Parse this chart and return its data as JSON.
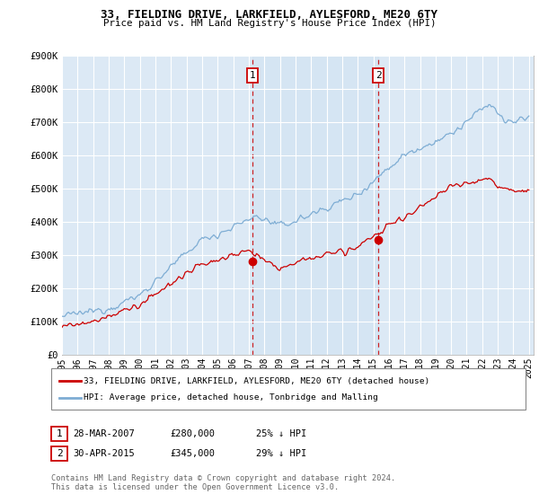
{
  "title": "33, FIELDING DRIVE, LARKFIELD, AYLESFORD, ME20 6TY",
  "subtitle": "Price paid vs. HM Land Registry's House Price Index (HPI)",
  "ylim": [
    0,
    900000
  ],
  "yticks": [
    0,
    100000,
    200000,
    300000,
    400000,
    500000,
    600000,
    700000,
    800000,
    900000
  ],
  "ytick_labels": [
    "£0",
    "£100K",
    "£200K",
    "£300K",
    "£400K",
    "£500K",
    "£600K",
    "£700K",
    "£800K",
    "£900K"
  ],
  "x_start_year": 1995,
  "x_end_year": 2025,
  "event1_year": 2007.23,
  "event1_label": "1",
  "event1_price": 280000,
  "event2_year": 2015.33,
  "event2_label": "2",
  "event2_price": 345000,
  "red_color": "#cc0000",
  "blue_color": "#7eadd4",
  "bg_color": "#dce9f5",
  "legend_entry1": "33, FIELDING DRIVE, LARKFIELD, AYLESFORD, ME20 6TY (detached house)",
  "legend_entry2": "HPI: Average price, detached house, Tonbridge and Malling",
  "note1_label": "1",
  "note1_date": "28-MAR-2007",
  "note1_price": "£280,000",
  "note1_hpi": "25% ↓ HPI",
  "note2_label": "2",
  "note2_date": "30-APR-2015",
  "note2_price": "£345,000",
  "note2_hpi": "29% ↓ HPI",
  "footer": "Contains HM Land Registry data © Crown copyright and database right 2024.\nThis data is licensed under the Open Government Licence v3.0."
}
